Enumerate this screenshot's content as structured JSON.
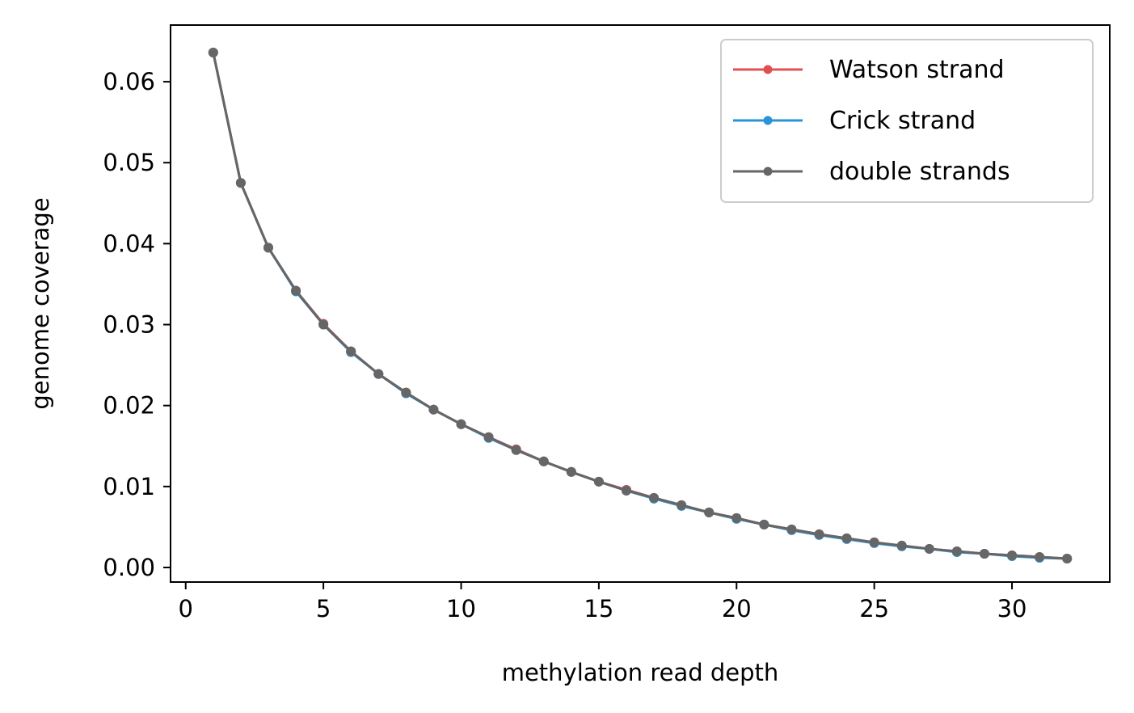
{
  "chart_data": {
    "type": "line",
    "xlabel": "methylation read depth",
    "ylabel": "genome coverage",
    "xlim": [
      -0.55,
      33.55
    ],
    "ylim": [
      -0.0018,
      0.067
    ],
    "xticks": [
      0,
      5,
      10,
      15,
      20,
      25,
      30
    ],
    "xtick_labels": [
      "0",
      "5",
      "10",
      "15",
      "20",
      "25",
      "30"
    ],
    "yticks": [
      0.0,
      0.01,
      0.02,
      0.03,
      0.04,
      0.05,
      0.06
    ],
    "ytick_labels": [
      "0.00",
      "0.01",
      "0.02",
      "0.03",
      "0.04",
      "0.05",
      "0.06"
    ],
    "grid": false,
    "legend_position": "top-right",
    "x": [
      1,
      2,
      3,
      4,
      5,
      6,
      7,
      8,
      9,
      10,
      11,
      12,
      13,
      14,
      15,
      16,
      17,
      18,
      19,
      20,
      21,
      22,
      23,
      24,
      25,
      26,
      27,
      28,
      29,
      30,
      31,
      32
    ],
    "series": [
      {
        "name": "Watson strand",
        "color": "#e05050",
        "values": [
          0.0636,
          0.0475,
          0.0395,
          0.0342,
          0.0301,
          0.0267,
          0.0239,
          0.0216,
          0.0195,
          0.0177,
          0.0161,
          0.0146,
          0.0131,
          0.0118,
          0.0106,
          0.0096,
          0.0086,
          0.0077,
          0.0068,
          0.0061,
          0.0053,
          0.0047,
          0.0041,
          0.0036,
          0.0031,
          0.0027,
          0.0023,
          0.002,
          0.0017,
          0.0015,
          0.0013,
          0.0011
        ]
      },
      {
        "name": "Crick strand",
        "color": "#2a94d8",
        "values": [
          0.0636,
          0.0475,
          0.0395,
          0.0341,
          0.03,
          0.0266,
          0.0239,
          0.0215,
          0.0195,
          0.0177,
          0.016,
          0.0145,
          0.0131,
          0.0118,
          0.0106,
          0.0095,
          0.0085,
          0.0076,
          0.0068,
          0.006,
          0.0053,
          0.0046,
          0.004,
          0.0035,
          0.003,
          0.0026,
          0.0023,
          0.0019,
          0.0017,
          0.0014,
          0.0012,
          0.0011
        ]
      },
      {
        "name": "double strands",
        "color": "#666666",
        "values": [
          0.0636,
          0.0475,
          0.0395,
          0.0342,
          0.03,
          0.0267,
          0.0239,
          0.0216,
          0.0195,
          0.0177,
          0.0161,
          0.0145,
          0.0131,
          0.0118,
          0.0106,
          0.0095,
          0.0086,
          0.0077,
          0.0068,
          0.0061,
          0.0053,
          0.0047,
          0.0041,
          0.0036,
          0.0031,
          0.0027,
          0.0023,
          0.002,
          0.0017,
          0.0015,
          0.0013,
          0.0011
        ]
      }
    ]
  }
}
